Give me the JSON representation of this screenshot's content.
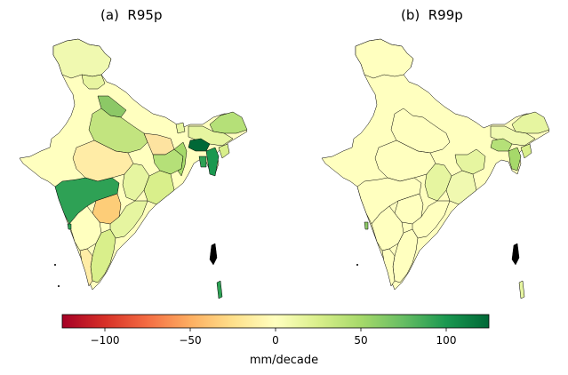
{
  "panels": [
    {
      "title": "(a)  R95p"
    },
    {
      "title": "(b)  R99p"
    }
  ],
  "colorbar": {
    "label": "mm/decade",
    "range": [
      -125,
      125
    ],
    "ticks": [
      {
        "value": -100,
        "label": "−100"
      },
      {
        "value": -50,
        "label": "−50"
      },
      {
        "value": 0,
        "label": "0"
      },
      {
        "value": 50,
        "label": "50"
      },
      {
        "value": 100,
        "label": "100"
      }
    ],
    "colormap": "RdYlGn",
    "colors": [
      "#a50026",
      "#d73027",
      "#f46d43",
      "#fdae61",
      "#fee08b",
      "#ffffbf",
      "#d9ef8b",
      "#a6d96a",
      "#66bd63",
      "#1a9850",
      "#006837"
    ]
  },
  "map_colors": {
    "neutral": "#ffffbf",
    "light_green": "#e6f5a0",
    "yellow_green": "#d2eb8c",
    "green_mid": "#b5e078",
    "green": "#8cc866",
    "green_strong": "#2ea155",
    "dark_green": "#006837",
    "light_orange": "#ffeca6",
    "orange": "#fdcd78",
    "outline": "#000000"
  }
}
